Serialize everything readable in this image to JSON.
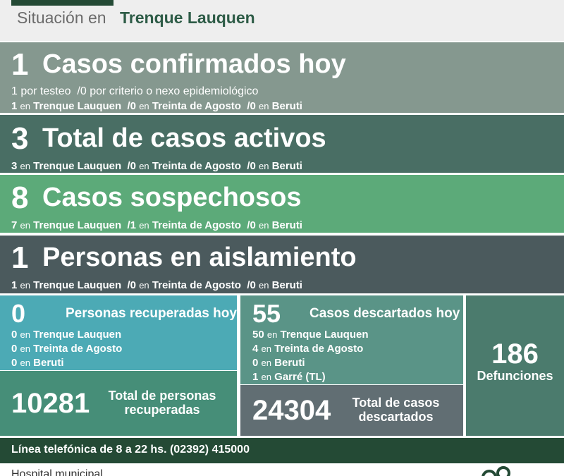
{
  "header": {
    "prefix": "Situación en",
    "city": "Trenque Lauquen"
  },
  "confirmados": {
    "number": "1",
    "title": "Casos confirmados hoy",
    "testeo_count": "1",
    "testeo_label": "por testeo",
    "criterio_count": "/0",
    "criterio_label": "por criterio o nexo epidemiológico",
    "tl_count": "1",
    "ta_count": "/0",
    "be_count": "/0"
  },
  "activos": {
    "number": "3",
    "title": "Total de casos activos",
    "tl_count": "3",
    "ta_count": "/0",
    "be_count": "/0"
  },
  "sospechosos": {
    "number": "8",
    "title": "Casos sospechosos",
    "tl_count": "7",
    "ta_count": "/1",
    "be_count": "/0"
  },
  "aislamiento": {
    "number": "1",
    "title": "Personas en aislamiento",
    "tl_count": "1",
    "ta_count": "/0",
    "be_count": "/0"
  },
  "labels": {
    "en": "en",
    "trenque": "Trenque Lauquen",
    "treinta": "Treinta de Agosto",
    "beruti": "Beruti",
    "garre": "Garré (TL)"
  },
  "recuperados": {
    "number": "0",
    "title": "Personas recuperadas hoy",
    "tl_count": "0",
    "ta_count": "0",
    "be_count": "0",
    "total": "10281",
    "total_label_1": "Total de personas",
    "total_label_2": "recuperadas"
  },
  "descartados": {
    "number": "55",
    "title": "Casos descartados hoy",
    "tl_count": "50",
    "ta_count": "4",
    "be_count": "0",
    "ga_count": "1",
    "total": "24304",
    "total_label_1": "Total de casos",
    "total_label_2": "descartados"
  },
  "defunciones": {
    "number": "186",
    "label": "Defunciones"
  },
  "phone": {
    "text": "Línea telefónica de 8 a 22 hs. (02392) 415000"
  },
  "footer": {
    "text": "Hospital municipal"
  },
  "colors": {
    "dark_green": "#244a35",
    "sage": "#85988f",
    "teal_dark": "#496e64",
    "green": "#5caa79",
    "slate": "#4b5a5d",
    "cyan": "#4caab5"
  }
}
